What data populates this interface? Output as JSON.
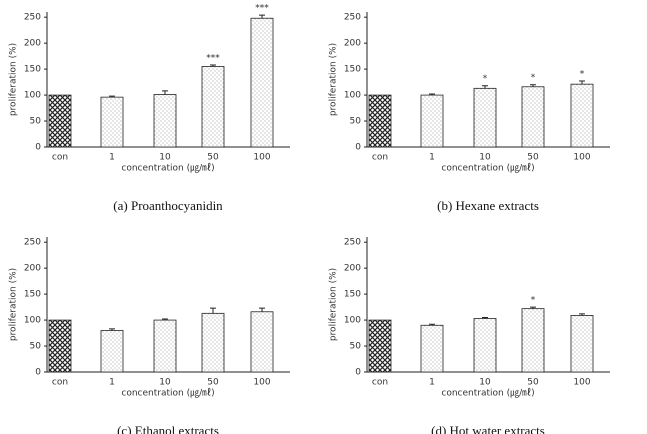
{
  "chart_data": [
    {
      "type": "bar",
      "caption": "(a)  Proanthocyanidin",
      "ylabel": "proliferation (%)",
      "xlabel": "concentration (㎍/㎖)",
      "categories": [
        "con",
        "1",
        "10",
        "50",
        "100"
      ],
      "values": [
        100,
        96,
        101,
        155,
        248
      ],
      "errors": [
        null,
        2,
        7,
        3,
        6
      ],
      "annotations": [
        null,
        null,
        null,
        "***",
        "***"
      ],
      "patterns": [
        "crosshatch",
        "dots",
        "dots",
        "dots",
        "dots"
      ],
      "ylim": [
        0,
        260
      ],
      "yticks": [
        0,
        50,
        100,
        150,
        200,
        250
      ]
    },
    {
      "type": "bar",
      "caption": "(b)  Hexane  extracts",
      "ylabel": "proliferation (%)",
      "xlabel": "concentration (㎍/㎖)",
      "categories": [
        "con",
        "1",
        "10",
        "50",
        "100"
      ],
      "values": [
        100,
        100,
        113,
        116,
        121
      ],
      "errors": [
        null,
        2,
        5,
        4,
        6
      ],
      "annotations": [
        null,
        null,
        "*",
        "*",
        "*"
      ],
      "patterns": [
        "crosshatch",
        "dots",
        "dots",
        "dots",
        "dots"
      ],
      "ylim": [
        0,
        260
      ],
      "yticks": [
        0,
        50,
        100,
        150,
        200,
        250
      ]
    },
    {
      "type": "bar",
      "caption": "(c)  Ethanol  extracts",
      "ylabel": "proliferation (%)",
      "xlabel": "concentration (㎍/㎖)",
      "categories": [
        "con",
        "1",
        "10",
        "50",
        "100"
      ],
      "values": [
        100,
        80,
        100,
        113,
        116
      ],
      "errors": [
        null,
        3,
        2,
        10,
        7
      ],
      "annotations": [
        null,
        null,
        null,
        null,
        null
      ],
      "patterns": [
        "crosshatch",
        "dots",
        "dots",
        "dots",
        "dots"
      ],
      "ylim": [
        0,
        260
      ],
      "yticks": [
        0,
        50,
        100,
        150,
        200,
        250
      ]
    },
    {
      "type": "bar",
      "caption": "(d)  Hot  water  extracts",
      "ylabel": "proliferation (%)",
      "xlabel": "concentration (㎍/㎖)",
      "categories": [
        "con",
        "1",
        "10",
        "50",
        "100"
      ],
      "values": [
        100,
        90,
        103,
        122,
        109
      ],
      "errors": [
        null,
        2,
        2,
        3,
        3
      ],
      "annotations": [
        null,
        null,
        null,
        "*",
        null
      ],
      "patterns": [
        "crosshatch",
        "dots",
        "dots",
        "dots",
        "dots"
      ],
      "ylim": [
        0,
        260
      ],
      "yticks": [
        0,
        50,
        100,
        150,
        200,
        250
      ]
    }
  ]
}
